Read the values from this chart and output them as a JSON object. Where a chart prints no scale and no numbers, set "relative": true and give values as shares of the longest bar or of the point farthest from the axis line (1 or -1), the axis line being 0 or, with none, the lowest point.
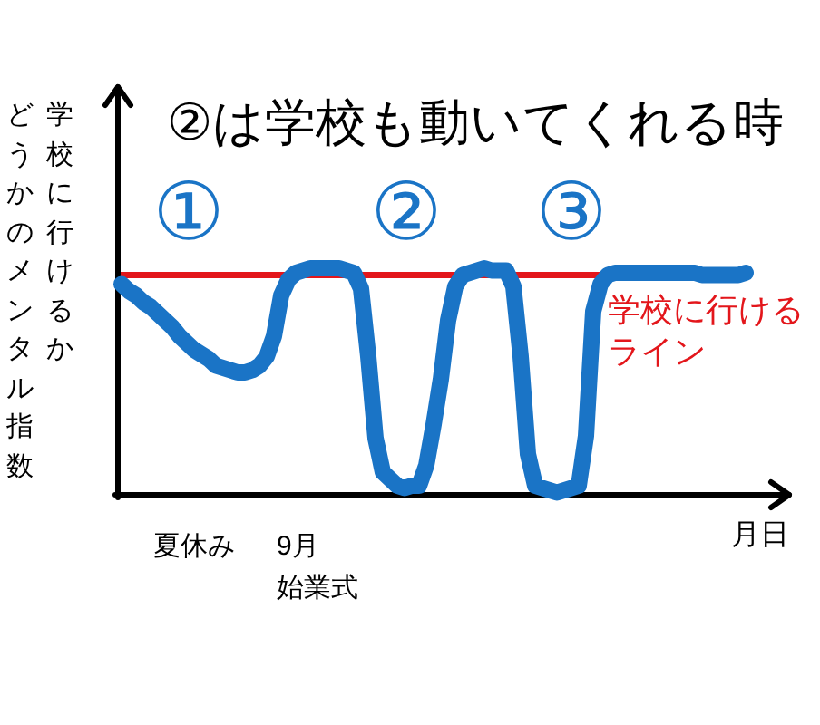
{
  "chart_data": {
    "type": "line",
    "title": "②は学校も動いてくれる時",
    "xlabel": "月日",
    "ylabel": "学校に行けるかどうかのメンタル指数",
    "relative": true,
    "categories": [
      null,
      null,
      null,
      null,
      null,
      null,
      null,
      null,
      null,
      null,
      "夏休み",
      null,
      null,
      null,
      null,
      null,
      null,
      null,
      null,
      null,
      null,
      null,
      null,
      null,
      null,
      null,
      null,
      "9月始業式",
      null,
      null,
      null,
      null,
      null,
      null,
      null,
      null,
      null,
      null,
      null,
      null,
      null,
      null,
      null,
      null,
      null,
      null,
      null,
      null,
      null,
      null,
      null,
      null,
      null,
      null,
      null,
      null,
      null,
      null,
      null,
      null,
      null,
      null,
      null,
      null,
      null,
      null,
      null,
      null,
      null,
      null,
      null,
      null,
      null,
      null,
      null,
      null,
      null,
      null,
      null,
      null,
      null,
      null,
      null,
      null,
      null,
      null,
      null
    ],
    "series": [
      {
        "color": "#1a74c6",
        "values": [
          0.93,
          0.9,
          0.88,
          0.85,
          0.83,
          0.8,
          0.77,
          0.74,
          0.7,
          0.67,
          0.64,
          0.62,
          0.6,
          0.57,
          0.56,
          0.55,
          0.54,
          0.54,
          0.55,
          0.57,
          0.61,
          0.7,
          0.88,
          0.95,
          0.98,
          0.99,
          1.0,
          1.0,
          1.0,
          1.0,
          1.0,
          0.99,
          0.98,
          0.91,
          0.61,
          0.25,
          0.1,
          0.07,
          0.04,
          0.03,
          0.04,
          0.04,
          0.13,
          0.31,
          0.51,
          0.77,
          0.92,
          0.97,
          0.98,
          0.99,
          1.0,
          0.99,
          0.99,
          0.99,
          0.92,
          0.61,
          0.18,
          0.04,
          0.03,
          0.02,
          0.01,
          0.02,
          0.03,
          0.04,
          0.26,
          0.81,
          0.93,
          0.97,
          0.98,
          0.98,
          0.98,
          0.98,
          0.98,
          0.98,
          0.98,
          0.98,
          0.98,
          0.98,
          0.98,
          0.98,
          0.97,
          0.97,
          0.97,
          0.97,
          0.97,
          0.97,
          0.98
        ]
      }
    ],
    "ref_lines": [
      {
        "axis": "y",
        "value": 0.97,
        "label": "学校に行けるライン",
        "color": "#e3161b"
      }
    ],
    "annotations": [
      "①",
      "②",
      "③"
    ]
  }
}
